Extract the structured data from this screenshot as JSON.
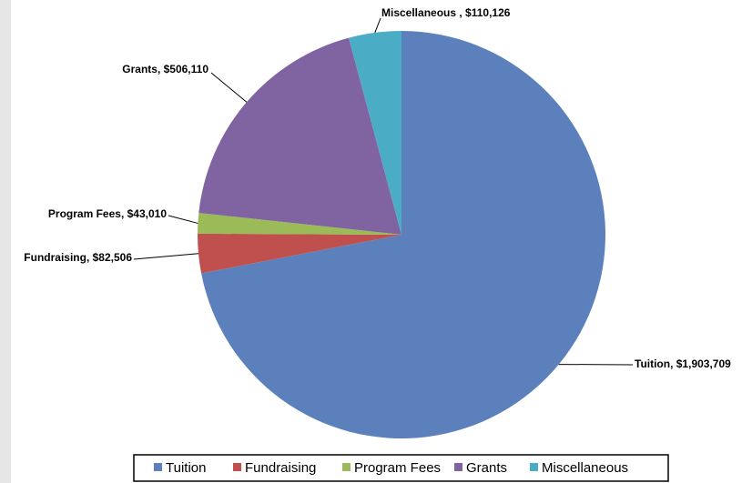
{
  "chart_data": {
    "type": "pie",
    "categories": [
      "Tuition",
      "Fundraising",
      "Program Fees",
      "Grants",
      "Miscellaneous"
    ],
    "values": [
      1903709,
      82506,
      43010,
      506110,
      110126
    ],
    "value_labels": [
      "Tuition, $1,903,709",
      "Fundraising, $82,506",
      "Program Fees, $43,010",
      "Grants, $506,110",
      "Miscellaneous , $110,126"
    ],
    "colors": [
      "#5b80bb",
      "#c0504d",
      "#9bbb59",
      "#8064a2",
      "#4bacc6"
    ],
    "legend": "bottom"
  }
}
